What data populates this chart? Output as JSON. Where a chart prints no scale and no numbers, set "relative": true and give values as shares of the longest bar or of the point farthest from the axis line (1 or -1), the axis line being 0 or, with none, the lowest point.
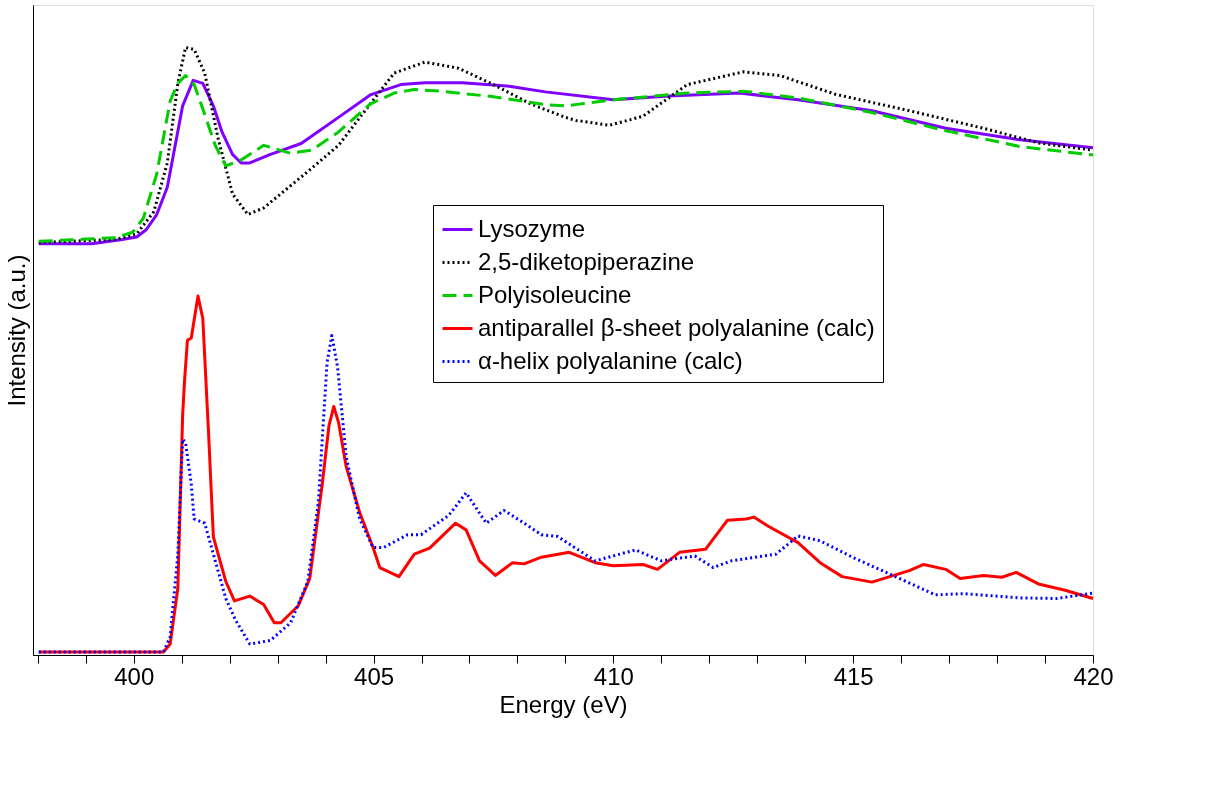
{
  "chart_data": {
    "type": "line",
    "relative": true,
    "xlabel": "Energy (eV)",
    "ylabel": "Intensity (a.u.)",
    "xlim": [
      397.9,
      420.0
    ],
    "xticks": [
      {
        "value": 398,
        "label": null
      },
      {
        "value": 399,
        "label": null
      },
      400,
      {
        "value": 401,
        "label": null
      },
      {
        "value": 402,
        "label": null
      },
      {
        "value": 403,
        "label": null
      },
      {
        "value": 404,
        "label": null
      },
      405,
      {
        "value": 406,
        "label": null
      },
      {
        "value": 407,
        "label": null
      },
      {
        "value": 408,
        "label": null
      },
      {
        "value": 409,
        "label": null
      },
      410,
      {
        "value": 411,
        "label": null
      },
      {
        "value": 412,
        "label": null
      },
      {
        "value": 413,
        "label": null
      },
      {
        "value": 414,
        "label": null
      },
      415,
      {
        "value": 416,
        "label": null
      },
      {
        "value": 417,
        "label": null
      },
      {
        "value": 418,
        "label": null
      },
      {
        "value": 419,
        "label": null
      },
      420
    ],
    "grid": false,
    "legend": "right",
    "marker": "none",
    "tick_labels": "x",
    "series": [
      {
        "name": "Lysozyme",
        "color": "#7f00ff",
        "line_style": "solid",
        "x": [
          398.02,
          399.12,
          399.76,
          400.06,
          400.26,
          400.48,
          400.7,
          401.02,
          401.24,
          401.44,
          401.66,
          401.84,
          402.06,
          402.24,
          402.42,
          402.85,
          403.49,
          404.27,
          404.93,
          405.57,
          406.07,
          406.85,
          407.86,
          408.58,
          410.0,
          411.16,
          412.63,
          413.85,
          415.39,
          416.93,
          418.48,
          420.0
        ],
        "values": [
          0.677,
          0.677,
          0.684,
          0.688,
          0.7,
          0.725,
          0.77,
          0.904,
          0.946,
          0.941,
          0.904,
          0.861,
          0.824,
          0.81,
          0.81,
          0.824,
          0.842,
          0.885,
          0.922,
          0.939,
          0.942,
          0.942,
          0.936,
          0.927,
          0.914,
          0.92,
          0.925,
          0.914,
          0.896,
          0.867,
          0.848,
          0.835
        ]
      },
      {
        "name": "2,5-diketopiperazine",
        "color": "#000000",
        "line_style": "dotted",
        "x": [
          398.02,
          399.62,
          400.06,
          400.42,
          400.7,
          400.92,
          401.08,
          401.26,
          401.48,
          401.76,
          402.06,
          402.38,
          402.71,
          403.57,
          404.27,
          404.93,
          405.43,
          406.07,
          406.77,
          407.5,
          408.28,
          409.0,
          409.22,
          409.92,
          410.62,
          411.54,
          412.71,
          413.47,
          414.63,
          416.17,
          417.72,
          418.86,
          420.0
        ],
        "values": [
          0.679,
          0.684,
          0.693,
          0.73,
          0.81,
          0.941,
          1.0,
          0.997,
          0.958,
          0.85,
          0.759,
          0.725,
          0.736,
          0.792,
          0.839,
          0.907,
          0.958,
          0.976,
          0.966,
          0.939,
          0.907,
          0.885,
          0.88,
          0.872,
          0.887,
          0.939,
          0.96,
          0.954,
          0.923,
          0.896,
          0.867,
          0.843,
          0.831
        ]
      },
      {
        "name": "Polyisoleucine",
        "color": "#00cc00",
        "line_style": "dashed",
        "x": [
          398.02,
          399.62,
          399.98,
          400.2,
          400.48,
          400.76,
          400.92,
          401.08,
          401.26,
          401.48,
          401.7,
          401.92,
          402.26,
          402.71,
          403.27,
          403.71,
          404.27,
          404.93,
          405.43,
          405.85,
          406.43,
          407.5,
          408.58,
          409.0,
          410.0,
          411.54,
          412.71,
          413.85,
          415.39,
          416.93,
          418.48,
          420.0
        ],
        "values": [
          0.681,
          0.687,
          0.696,
          0.719,
          0.792,
          0.912,
          0.941,
          0.954,
          0.939,
          0.89,
          0.839,
          0.805,
          0.816,
          0.839,
          0.826,
          0.831,
          0.861,
          0.907,
          0.925,
          0.931,
          0.928,
          0.919,
          0.906,
          0.904,
          0.914,
          0.925,
          0.928,
          0.917,
          0.893,
          0.863,
          0.837,
          0.823
        ]
      },
      {
        "name": "antiparallel β-sheet polyalanine (calc)",
        "color": "#ff0000",
        "line_style": "solid",
        "x": [
          398.02,
          400.62,
          400.76,
          400.92,
          401.02,
          401.06,
          401.12,
          401.2,
          401.34,
          401.44,
          401.56,
          401.66,
          401.76,
          401.92,
          402.1,
          402.42,
          402.71,
          402.93,
          403.07,
          403.43,
          403.67,
          403.93,
          404.07,
          404.17,
          404.27,
          404.43,
          404.71,
          404.99,
          405.13,
          405.53,
          405.85,
          406.17,
          406.71,
          406.93,
          407.21,
          407.54,
          407.9,
          408.14,
          408.5,
          409.08,
          409.62,
          410.0,
          410.62,
          410.92,
          411.38,
          411.92,
          412.38,
          412.77,
          412.93,
          413.23,
          413.85,
          414.31,
          414.77,
          415.39,
          416.17,
          416.47,
          416.93,
          417.23,
          417.72,
          418.1,
          418.4,
          418.86,
          419.4,
          420.0
        ],
        "values": [
          0.005,
          0.005,
          0.018,
          0.11,
          0.395,
          0.452,
          0.518,
          0.522,
          0.591,
          0.554,
          0.366,
          0.195,
          0.166,
          0.121,
          0.089,
          0.097,
          0.083,
          0.053,
          0.053,
          0.081,
          0.126,
          0.281,
          0.377,
          0.409,
          0.383,
          0.31,
          0.235,
          0.177,
          0.144,
          0.129,
          0.166,
          0.176,
          0.217,
          0.206,
          0.155,
          0.131,
          0.152,
          0.15,
          0.161,
          0.169,
          0.152,
          0.147,
          0.149,
          0.141,
          0.169,
          0.174,
          0.222,
          0.224,
          0.227,
          0.212,
          0.185,
          0.152,
          0.129,
          0.12,
          0.139,
          0.149,
          0.141,
          0.126,
          0.131,
          0.128,
          0.136,
          0.117,
          0.107,
          0.093
        ]
      },
      {
        "name": "α-helix polyalanine (calc)",
        "color": "#0000ff",
        "line_style": "dotted",
        "x": [
          398.02,
          400.62,
          400.76,
          400.92,
          401.02,
          401.08,
          401.2,
          401.26,
          401.48,
          401.7,
          401.92,
          402.12,
          402.42,
          402.85,
          403.27,
          403.63,
          403.85,
          404.03,
          404.13,
          404.25,
          404.43,
          404.71,
          404.99,
          405.21,
          405.71,
          405.99,
          406.57,
          406.93,
          407.35,
          407.72,
          408.14,
          408.5,
          408.84,
          409.62,
          410.46,
          411.0,
          411.7,
          412.08,
          412.46,
          413.39,
          413.85,
          414.31,
          415.01,
          415.77,
          416.71,
          417.31,
          418.48,
          419.24,
          420.0
        ],
        "values": [
          0.005,
          0.005,
          0.03,
          0.166,
          0.355,
          0.35,
          0.281,
          0.224,
          0.217,
          0.155,
          0.093,
          0.058,
          0.018,
          0.024,
          0.053,
          0.121,
          0.252,
          0.481,
          0.526,
          0.474,
          0.326,
          0.224,
          0.177,
          0.177,
          0.198,
          0.198,
          0.23,
          0.267,
          0.217,
          0.238,
          0.217,
          0.198,
          0.195,
          0.155,
          0.173,
          0.155,
          0.163,
          0.144,
          0.155,
          0.166,
          0.196,
          0.188,
          0.16,
          0.133,
          0.099,
          0.101,
          0.094,
          0.093,
          0.102
        ]
      }
    ]
  }
}
